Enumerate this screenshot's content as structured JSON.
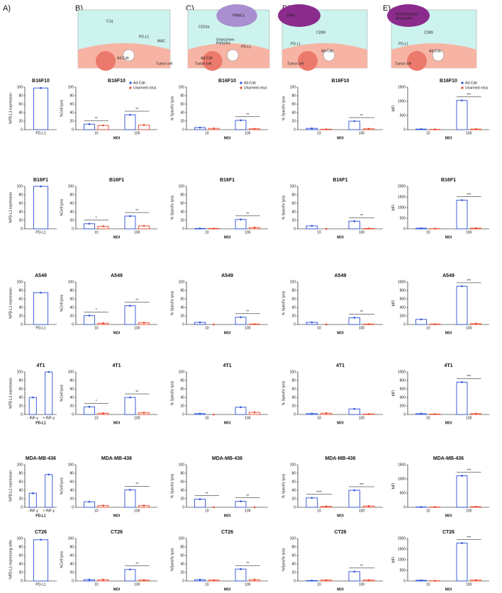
{
  "panel_labels": [
    "A)",
    "B)",
    "C)",
    "D)",
    "E)"
  ],
  "diagrams": [
    {
      "labels": [
        "C1q",
        "PD-L1",
        "MAC",
        "Ad-Cab",
        "Tumor cell"
      ]
    },
    {
      "labels": [
        "PBMCs",
        "CD16a",
        "Granzymes",
        "Perforins",
        "PD-L1",
        "Ad-Cab",
        "Tumor cell"
      ]
    },
    {
      "labels": [
        "PMN",
        "CD89",
        "PD-L1",
        "Ad-Cab",
        "Tumor cell"
      ]
    },
    {
      "labels": [
        "Macrophages/",
        "Monocytes",
        "CD89",
        "PD-L1",
        "Ad-Cab",
        "Tumor cell"
      ]
    }
  ],
  "chart_data": [
    {
      "type": "bar",
      "title": "B16F10",
      "ylabel": "%PD-L1 expression",
      "categories": [
        "PD-L1"
      ],
      "values": [
        98
      ],
      "color": "#2a4fd8",
      "ylim": [
        0,
        100
      ],
      "yticks": [
        0,
        20,
        40,
        60,
        80,
        100
      ]
    },
    {
      "type": "bar",
      "title": "B16F10",
      "ylabel": "%Cell lysis",
      "xlabel": "MOI",
      "categories": [
        "10",
        "100"
      ],
      "series": [
        {
          "name": "Ad-Cab",
          "color": "#2a4fd8",
          "values": [
            13,
            35
          ]
        },
        {
          "name": "Unarmed virus",
          "color": "#e8462a",
          "values": [
            10,
            11
          ]
        }
      ],
      "annotations": [
        "**",
        "**"
      ],
      "legend": "upper right",
      "ylim": [
        0,
        100
      ],
      "yticks": [
        0,
        20,
        40,
        60,
        80,
        100
      ]
    },
    {
      "type": "bar",
      "title": "B16F10",
      "ylabel": "% Specific lysis",
      "xlabel": "MOI",
      "categories": [
        "10",
        "100"
      ],
      "series": [
        {
          "name": "Ad-Cab",
          "color": "#2a4fd8",
          "values": [
            5,
            22
          ]
        },
        {
          "name": "Unarmed virus",
          "color": "#e8462a",
          "values": [
            3,
            2
          ]
        }
      ],
      "annotations": [
        null,
        "**"
      ],
      "legend": "upper right",
      "ylim": [
        0,
        100
      ],
      "yticks": [
        0,
        20,
        40,
        60,
        80,
        100
      ]
    },
    {
      "type": "bar",
      "title": "B16F10",
      "ylabel": "% Specific lysis",
      "xlabel": "MOI",
      "categories": [
        "10",
        "100"
      ],
      "series": [
        {
          "color": "#2a4fd8",
          "values": [
            3,
            20
          ]
        },
        {
          "color": "#e8462a",
          "values": [
            1,
            2
          ]
        }
      ],
      "annotations": [
        null,
        "**"
      ],
      "ylim": [
        0,
        100
      ],
      "yticks": [
        0,
        20,
        40,
        60,
        80,
        100
      ]
    },
    {
      "type": "bar",
      "title": "B16F10",
      "ylabel": "MFI",
      "xlabel": "MOI",
      "categories": [
        "10",
        "100"
      ],
      "series": [
        {
          "name": "Ad-Cab",
          "color": "#2a4fd8",
          "values": [
            20,
            1030
          ]
        },
        {
          "name": "Unarmed virus",
          "color": "#e8462a",
          "values": [
            10,
            20
          ]
        }
      ],
      "annotations": [
        null,
        "***"
      ],
      "legend": "upper right",
      "ylim": [
        0,
        1500
      ],
      "yticks": [
        0,
        500,
        1000,
        1500
      ]
    },
    {
      "type": "bar",
      "title": "B16F1",
      "ylabel": "%PD-L1 expression",
      "categories": [
        "PD-L1"
      ],
      "values": [
        100
      ],
      "color": "#2a4fd8",
      "ylim": [
        0,
        100
      ],
      "yticks": [
        0,
        20,
        40,
        60,
        80,
        100
      ]
    },
    {
      "type": "bar",
      "title": "B16F1",
      "ylabel": "%Cell lysis",
      "xlabel": "MOI",
      "categories": [
        "10",
        "100"
      ],
      "series": [
        {
          "color": "#2a4fd8",
          "values": [
            12,
            30
          ]
        },
        {
          "color": "#e8462a",
          "values": [
            6,
            7
          ]
        }
      ],
      "annotations": [
        "*",
        "**"
      ],
      "ylim": [
        0,
        100
      ],
      "yticks": [
        0,
        20,
        40,
        60,
        80,
        100
      ]
    },
    {
      "type": "bar",
      "title": "B16F1",
      "ylabel": "% Specific lysis",
      "xlabel": "MOI",
      "categories": [
        "10",
        "100"
      ],
      "series": [
        {
          "color": "#2a4fd8",
          "values": [
            1,
            22
          ]
        },
        {
          "color": "#e8462a",
          "values": [
            1,
            3
          ]
        }
      ],
      "annotations": [
        null,
        "**"
      ],
      "ylim": [
        0,
        100
      ],
      "yticks": [
        0,
        20,
        40,
        60,
        80,
        100
      ]
    },
    {
      "type": "bar",
      "title": "B16F1",
      "ylabel": "% Specific lysis",
      "xlabel": "MOI",
      "categories": [
        "10",
        "100"
      ],
      "series": [
        {
          "color": "#2a4fd8",
          "values": [
            7,
            18
          ]
        },
        {
          "color": "#e8462a",
          "values": [
            0,
            1
          ]
        }
      ],
      "annotations": [
        null,
        "**"
      ],
      "ylim": [
        0,
        100
      ],
      "yticks": [
        0,
        20,
        40,
        60,
        80,
        100
      ]
    },
    {
      "type": "bar",
      "title": "B16F1",
      "ylabel": "MFI",
      "xlabel": "MOI",
      "categories": [
        "10",
        "100"
      ],
      "series": [
        {
          "color": "#2a4fd8",
          "values": [
            30,
            1350
          ]
        },
        {
          "color": "#e8462a",
          "values": [
            10,
            30
          ]
        }
      ],
      "annotations": [
        null,
        "***"
      ],
      "ylim": [
        0,
        2000
      ],
      "yticks": [
        0,
        500,
        1000,
        1500,
        2000
      ]
    },
    {
      "type": "bar",
      "title": "A549",
      "ylabel": "%PD-L1 expression",
      "categories": [
        "PD-L1"
      ],
      "values": [
        75
      ],
      "color": "#2a4fd8",
      "ylim": [
        0,
        100
      ],
      "yticks": [
        0,
        20,
        40,
        60,
        80,
        100
      ]
    },
    {
      "type": "bar",
      "title": "A549",
      "ylabel": "%Cell lysis",
      "xlabel": "MOI",
      "categories": [
        "10",
        "100"
      ],
      "series": [
        {
          "color": "#2a4fd8",
          "values": [
            21,
            44
          ]
        },
        {
          "color": "#e8462a",
          "values": [
            3,
            4
          ]
        }
      ],
      "annotations": [
        "*",
        "**"
      ],
      "ylim": [
        0,
        100
      ],
      "yticks": [
        0,
        20,
        40,
        60,
        80,
        100
      ]
    },
    {
      "type": "bar",
      "title": "A549",
      "ylabel": "% Specific lysis",
      "xlabel": "MOI",
      "categories": [
        "10",
        "100"
      ],
      "series": [
        {
          "color": "#2a4fd8",
          "values": [
            5,
            17
          ]
        },
        {
          "color": "#e8462a",
          "values": [
            0,
            1
          ]
        }
      ],
      "annotations": [
        null,
        "**"
      ],
      "ylim": [
        0,
        100
      ],
      "yticks": [
        0,
        20,
        40,
        60,
        80,
        100
      ]
    },
    {
      "type": "bar",
      "title": "A549",
      "ylabel": "% Specific lysis",
      "xlabel": "MOI",
      "categories": [
        "10",
        "100"
      ],
      "series": [
        {
          "color": "#2a4fd8",
          "values": [
            5,
            16
          ]
        },
        {
          "color": "#e8462a",
          "values": [
            0,
            1
          ]
        }
      ],
      "annotations": [
        null,
        "**"
      ],
      "ylim": [
        0,
        100
      ],
      "yticks": [
        0,
        20,
        40,
        60,
        80,
        100
      ]
    },
    {
      "type": "bar",
      "title": "A549",
      "ylabel": "MFI",
      "xlabel": "MOI",
      "categories": [
        "10",
        "100"
      ],
      "series": [
        {
          "color": "#2a4fd8",
          "values": [
            120,
            900
          ]
        },
        {
          "color": "#e8462a",
          "values": [
            10,
            20
          ]
        }
      ],
      "annotations": [
        null,
        "***"
      ],
      "ylim": [
        0,
        1000
      ],
      "yticks": [
        0,
        200,
        400,
        600,
        800,
        1000
      ]
    },
    {
      "type": "bar",
      "title": "4T1",
      "ylabel": "%PD-L1 expression",
      "xlabel": "PD-L1",
      "categories": [
        "- INF-γ",
        "+ INF-γ"
      ],
      "values": [
        40,
        100
      ],
      "color": "#2a4fd8",
      "ylim": [
        0,
        100
      ],
      "yticks": [
        0,
        20,
        40,
        60,
        80,
        100
      ]
    },
    {
      "type": "bar",
      "title": "4T1",
      "ylabel": "%Cell lysis",
      "xlabel": "MOI",
      "categories": [
        "10",
        "100"
      ],
      "series": [
        {
          "color": "#2a4fd8",
          "values": [
            18,
            40
          ]
        },
        {
          "color": "#e8462a",
          "values": [
            3,
            4
          ]
        }
      ],
      "annotations": [
        "*",
        "**"
      ],
      "ylim": [
        0,
        100
      ],
      "yticks": [
        0,
        20,
        40,
        60,
        80,
        100
      ]
    },
    {
      "type": "bar",
      "title": "4T1",
      "ylabel": "% Specific lysis",
      "xlabel": "MOI",
      "categories": [
        "10",
        "100"
      ],
      "series": [
        {
          "color": "#2a4fd8",
          "values": [
            2,
            17
          ]
        },
        {
          "color": "#e8462a",
          "values": [
            0,
            5
          ]
        }
      ],
      "ylim": [
        0,
        100
      ],
      "yticks": [
        0,
        20,
        40,
        60,
        80,
        100
      ]
    },
    {
      "type": "bar",
      "title": "4T1",
      "ylabel": "% Specific lysis",
      "xlabel": "MOI",
      "categories": [
        "10",
        "100"
      ],
      "series": [
        {
          "color": "#2a4fd8",
          "values": [
            2,
            13
          ]
        },
        {
          "color": "#e8462a",
          "values": [
            3,
            1
          ]
        }
      ],
      "ylim": [
        0,
        100
      ],
      "yticks": [
        0,
        20,
        40,
        60,
        80,
        100
      ]
    },
    {
      "type": "bar",
      "title": "4T1",
      "ylabel": "MFI",
      "xlabel": "MOI",
      "categories": [
        "10",
        "100"
      ],
      "series": [
        {
          "color": "#2a4fd8",
          "values": [
            20,
            760
          ]
        },
        {
          "color": "#e8462a",
          "values": [
            10,
            20
          ]
        }
      ],
      "annotations": [
        null,
        "***"
      ],
      "ylim": [
        0,
        1000
      ],
      "yticks": [
        0,
        200,
        400,
        600,
        800,
        1000
      ]
    },
    {
      "type": "bar",
      "title": "MDA-MB-436",
      "ylabel": "%PD-L1 expression",
      "xlabel": "PD-L1",
      "categories": [
        "- INF-γ",
        "+ INF-γ"
      ],
      "values": [
        33,
        77
      ],
      "color": "#2a4fd8",
      "ylim": [
        0,
        100
      ],
      "yticks": [
        0,
        20,
        40,
        60,
        80,
        100
      ]
    },
    {
      "type": "bar",
      "title": "MDA-MB-436",
      "ylabel": "%Cell lysis",
      "xlabel": "MOI",
      "categories": [
        "10",
        "100"
      ],
      "series": [
        {
          "color": "#2a4fd8",
          "values": [
            13,
            41
          ]
        },
        {
          "color": "#e8462a",
          "values": [
            4,
            4
          ]
        }
      ],
      "annotations": [
        null,
        "**"
      ],
      "ylim": [
        0,
        100
      ],
      "yticks": [
        0,
        20,
        40,
        60,
        80,
        100
      ]
    },
    {
      "type": "bar",
      "title": "MDA-MB-436",
      "ylabel": "% Specific lysis",
      "xlabel": "MOI",
      "categories": [
        "10",
        "100"
      ],
      "series": [
        {
          "color": "#2a4fd8",
          "values": [
            19,
            14
          ]
        },
        {
          "color": "#e8462a",
          "values": [
            0,
            0
          ]
        }
      ],
      "annotations": [
        "**",
        "**"
      ],
      "ylim": [
        0,
        100
      ],
      "yticks": [
        0,
        20,
        40,
        60,
        80,
        100
      ]
    },
    {
      "type": "bar",
      "title": "MDA-MB-436",
      "ylabel": "% Specific lysis",
      "xlabel": "MOI",
      "categories": [
        "10",
        "100"
      ],
      "series": [
        {
          "color": "#2a4fd8",
          "values": [
            22,
            40
          ]
        },
        {
          "color": "#e8462a",
          "values": [
            2,
            3
          ]
        }
      ],
      "annotations": [
        "****",
        "***"
      ],
      "ylim": [
        0,
        100
      ],
      "yticks": [
        0,
        20,
        40,
        60,
        80,
        100
      ]
    },
    {
      "type": "bar",
      "title": "MDA-MB-436",
      "ylabel": "MFI",
      "xlabel": "MOI",
      "categories": [
        "10",
        "100"
      ],
      "series": [
        {
          "color": "#2a4fd8",
          "values": [
            10,
            1110
          ]
        },
        {
          "color": "#e8462a",
          "values": [
            10,
            20
          ]
        }
      ],
      "annotations": [
        null,
        "***"
      ],
      "ylim": [
        0,
        1500
      ],
      "yticks": [
        0,
        500,
        1000,
        1500
      ]
    },
    {
      "type": "bar",
      "title": "CT26",
      "ylabel": "%PD-L1 expressing cells",
      "categories": [
        "PD-L1"
      ],
      "values": [
        97
      ],
      "color": "#2a4fd8",
      "ylim": [
        0,
        100
      ],
      "yticks": [
        0,
        20,
        40,
        60,
        80,
        100
      ]
    },
    {
      "type": "bar",
      "title": "CT26",
      "ylabel": "%Cell lysis",
      "xlabel": "MOI",
      "categories": [
        "10",
        "100"
      ],
      "series": [
        {
          "color": "#2a4fd8",
          "values": [
            3,
            27
          ]
        },
        {
          "color": "#e8462a",
          "values": [
            3,
            2
          ]
        }
      ],
      "annotations": [
        null,
        "**"
      ],
      "ylim": [
        0,
        100
      ],
      "yticks": [
        0,
        20,
        40,
        60,
        80,
        100
      ]
    },
    {
      "type": "bar",
      "title": "CT26",
      "ylabel": "%Specific lysis",
      "xlabel": "MOI",
      "categories": [
        "10",
        "100"
      ],
      "series": [
        {
          "color": "#2a4fd8",
          "values": [
            3,
            28
          ]
        },
        {
          "color": "#e8462a",
          "values": [
            2,
            3
          ]
        }
      ],
      "annotations": [
        null,
        "**"
      ],
      "ylim": [
        0,
        100
      ],
      "yticks": [
        0,
        20,
        40,
        60,
        80,
        100
      ]
    },
    {
      "type": "bar",
      "title": "CT26",
      "ylabel": "%Specific lysis",
      "xlabel": "MOI",
      "categories": [
        "10",
        "100"
      ],
      "series": [
        {
          "color": "#2a4fd8",
          "values": [
            1,
            22
          ]
        },
        {
          "color": "#e8462a",
          "values": [
            2,
            2
          ]
        }
      ],
      "annotations": [
        null,
        "**"
      ],
      "ylim": [
        0,
        100
      ],
      "yticks": [
        0,
        20,
        40,
        60,
        80,
        100
      ]
    },
    {
      "type": "bar",
      "title": "CT26",
      "ylabel": "MFI",
      "xlabel": "MOI",
      "categories": [
        "10",
        "100"
      ],
      "series": [
        {
          "color": "#2a4fd8",
          "values": [
            30,
            1780
          ]
        },
        {
          "color": "#e8462a",
          "values": [
            10,
            40
          ]
        }
      ],
      "annotations": [
        null,
        "***"
      ],
      "ylim": [
        0,
        2000
      ],
      "yticks": [
        0,
        500,
        1000,
        1500,
        2000
      ]
    }
  ]
}
